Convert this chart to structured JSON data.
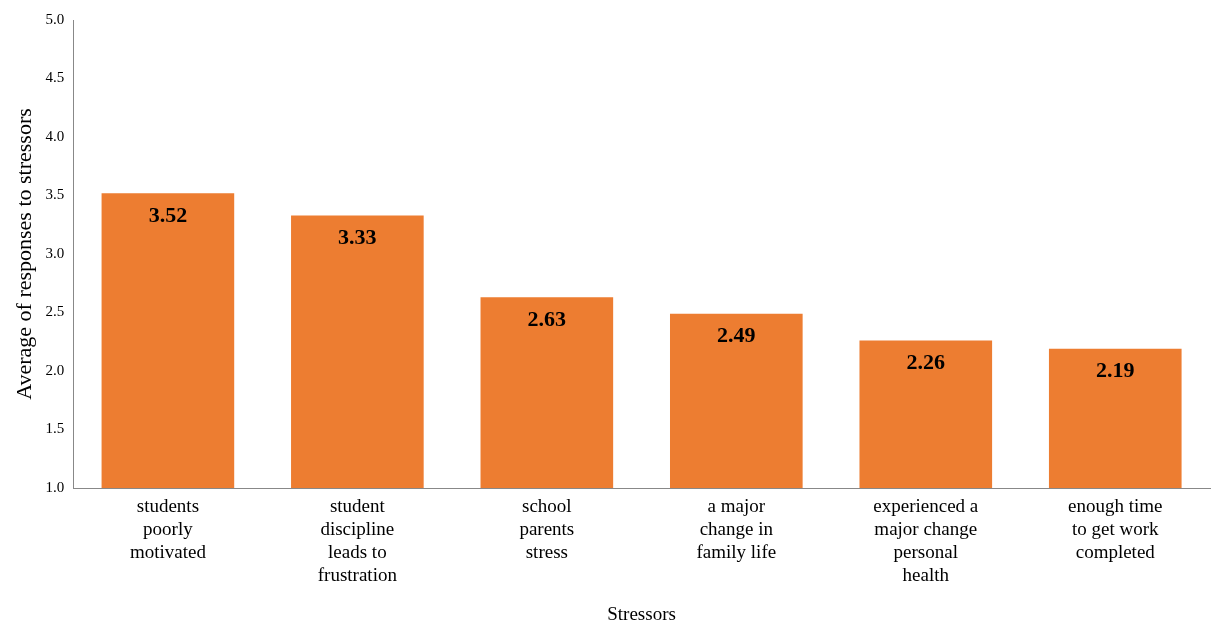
{
  "chart_data": {
    "type": "bar",
    "xlabel": "Stressors",
    "ylabel": "Average of responses to stressors",
    "categories": [
      "students poorly motivated",
      "student discipline leads to frustration",
      "school parents stress",
      "a major change in family life",
      "experienced a major change personal health",
      "enough time to get work completed"
    ],
    "values": [
      3.52,
      3.33,
      2.63,
      2.49,
      2.26,
      2.19
    ],
    "color": "#ed7d31",
    "ylim": [
      1.0,
      5.0
    ],
    "yticks": [
      {
        "value": 1,
        "label": "1.0"
      },
      {
        "value": 1.5,
        "label": "1.5"
      },
      {
        "value": 2,
        "label": "2.0"
      },
      {
        "value": 2.5,
        "label": "2.5"
      },
      {
        "value": 3,
        "label": "3.0"
      },
      {
        "value": 3.5,
        "label": "3.5"
      },
      {
        "value": 4,
        "label": "4.0"
      },
      {
        "value": 4.5,
        "label": "4.5"
      },
      {
        "value": 5,
        "label": "5.0"
      }
    ],
    "grid": false,
    "data_labels": true,
    "legend": false
  }
}
